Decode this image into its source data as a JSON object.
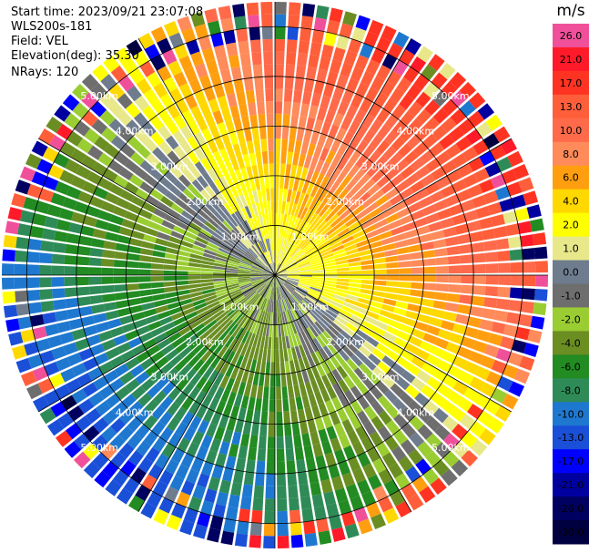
{
  "header": {
    "start_time": "Start time: 2023/09/21 23:07:08",
    "instrument": "WLS200s-181",
    "field": "Field: VEL",
    "elevation": "Elevation(deg): 35.30",
    "nrays": "NRays: 120"
  },
  "colorbar": {
    "unit": "m/s",
    "levels": [
      {
        "label": "26.0",
        "color": "#f0509a"
      },
      {
        "label": "21.0",
        "color": "#ff1a2a"
      },
      {
        "label": "17.0",
        "color": "#ff3322"
      },
      {
        "label": "13.0",
        "color": "#ff5e3a"
      },
      {
        "label": "10.0",
        "color": "#ff6a4a"
      },
      {
        "label": "8.0",
        "color": "#ff8a5a"
      },
      {
        "label": "6.0",
        "color": "#ff9f10"
      },
      {
        "label": "4.0",
        "color": "#ffd800"
      },
      {
        "label": "2.0",
        "color": "#ffff00"
      },
      {
        "label": "1.0",
        "color": "#e8e88a"
      },
      {
        "label": "0.0",
        "color": "#6e7c8e"
      },
      {
        "label": "-1.0",
        "color": "#6e6e6e"
      },
      {
        "label": "-2.0",
        "color": "#9acd32"
      },
      {
        "label": "-4.0",
        "color": "#6b8e23"
      },
      {
        "label": "-6.0",
        "color": "#228b22"
      },
      {
        "label": "-8.0",
        "color": "#2e8b57"
      },
      {
        "label": "-10.0",
        "color": "#1e78d0"
      },
      {
        "label": "-13.0",
        "color": "#1a4fd8"
      },
      {
        "label": "-17.0",
        "color": "#0000ff"
      },
      {
        "label": "-21.0",
        "color": "#0000a0"
      },
      {
        "label": "-26.0",
        "color": "#000060"
      },
      {
        "label": "-30.0",
        "color": "#000040"
      }
    ]
  },
  "chart_data": {
    "type": "heatmap",
    "projection": "polar (PPI)",
    "field": "VEL",
    "units": "m/s",
    "nrays": 120,
    "range_rings_km": [
      1.0,
      2.0,
      3.0,
      4.0,
      5.0
    ],
    "ring_labels": [
      "1.00km",
      "2.00km",
      "3.00km",
      "4.00km",
      "5.00km"
    ],
    "max_range_km": 5.5,
    "azimuth_spokes_deg": [
      0,
      30,
      60,
      90,
      120,
      150,
      180,
      210,
      240,
      270,
      300,
      330
    ],
    "velocity_pattern": {
      "description_values": "positive (toward orange/red) in the upper-right half, negative (green/blue) in the lower-left half",
      "max_positive_ms": 21.0,
      "max_negative_ms": -13.0,
      "zero_line_azimuth_deg": [
        135,
        315
      ]
    }
  }
}
